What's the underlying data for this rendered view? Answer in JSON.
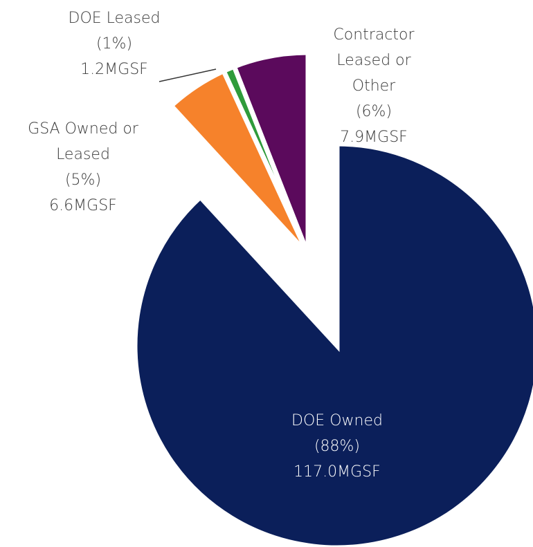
{
  "chart_data": {
    "type": "pie",
    "categories": [
      "DOE Owned",
      "GSA Owned or Leased",
      "DOE Leased",
      "Contractor Leased or Other"
    ],
    "values": [
      117.0,
      6.6,
      1.2,
      7.9
    ],
    "value_labels": [
      "117.0MGSF",
      "6.6MGSF",
      "1.2MGSF",
      "7.9MGSF"
    ],
    "percents": [
      88,
      5,
      1,
      6
    ],
    "percent_labels": [
      "(88%)",
      "(5%)",
      "(1%)",
      "(6%)"
    ],
    "colors": [
      "#0b1f5a",
      "#f6822b",
      "#2f9b3b",
      "#5b0a5c"
    ]
  }
}
